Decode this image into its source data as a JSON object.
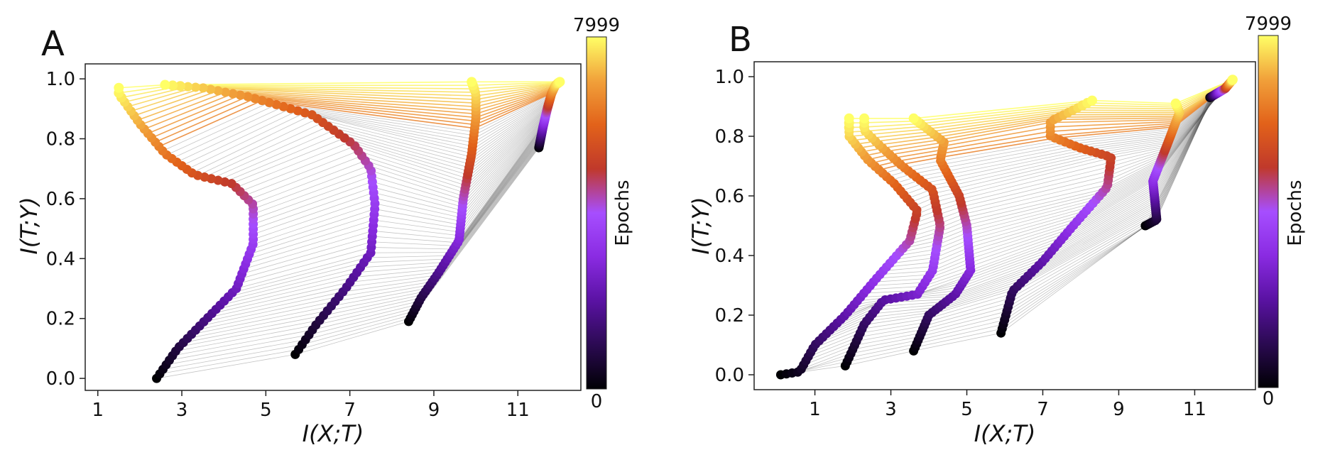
{
  "figure": {
    "colorbar_label": "Epochs",
    "colorbar_min": "0",
    "colorbar_max": "7999",
    "colormap": [
      "#000004",
      "#2b0a52",
      "#5a12a3",
      "#8a2be2",
      "#a64eff",
      "#c0392b",
      "#e2621a",
      "#f1a13a",
      "#ffff66"
    ]
  },
  "chart_data": [
    {
      "type": "scatter",
      "panel_label": "A",
      "title": "",
      "xlabel": "I(X;T)",
      "ylabel": "I(T;Y)",
      "xlim": [
        0.7,
        12.5
      ],
      "ylim": [
        -0.04,
        1.05
      ],
      "xticks": [
        "1",
        "3",
        "5",
        "7",
        "9",
        "11"
      ],
      "yticks": [
        "0.0",
        "0.2",
        "0.4",
        "0.6",
        "0.8",
        "1.0"
      ],
      "colorbar_label": "Epochs",
      "colorbar_range": [
        0,
        7999
      ],
      "series": [
        {
          "points": [
            [
              2.4,
              0.0
            ],
            [
              2.9,
              0.1
            ],
            [
              3.6,
              0.2
            ],
            [
              4.3,
              0.3
            ],
            [
              4.7,
              0.45
            ],
            [
              4.7,
              0.58
            ],
            [
              4.2,
              0.65
            ],
            [
              3.3,
              0.68
            ],
            [
              2.6,
              0.75
            ],
            [
              2.0,
              0.85
            ],
            [
              1.5,
              0.95
            ],
            [
              1.5,
              0.97
            ]
          ]
        },
        {
          "points": [
            [
              5.7,
              0.08
            ],
            [
              6.2,
              0.18
            ],
            [
              6.9,
              0.3
            ],
            [
              7.5,
              0.42
            ],
            [
              7.6,
              0.58
            ],
            [
              7.5,
              0.7
            ],
            [
              7.1,
              0.78
            ],
            [
              6.1,
              0.88
            ],
            [
              4.6,
              0.94
            ],
            [
              3.5,
              0.97
            ],
            [
              2.6,
              0.98
            ]
          ]
        },
        {
          "points": [
            [
              8.4,
              0.19
            ],
            [
              8.7,
              0.27
            ],
            [
              9.1,
              0.35
            ],
            [
              9.6,
              0.46
            ],
            [
              9.7,
              0.6
            ],
            [
              9.9,
              0.75
            ],
            [
              10.0,
              0.87
            ],
            [
              10.0,
              0.95
            ],
            [
              9.9,
              0.99
            ]
          ]
        },
        {
          "points": [
            [
              11.5,
              0.77
            ],
            [
              11.6,
              0.84
            ],
            [
              11.7,
              0.9
            ],
            [
              11.8,
              0.95
            ],
            [
              11.9,
              0.98
            ],
            [
              12.0,
              0.99
            ]
          ]
        }
      ]
    },
    {
      "type": "scatter",
      "panel_label": "B",
      "title": "",
      "xlabel": "I(X;T)",
      "ylabel": "I(T;Y)",
      "xlim": [
        -0.6,
        12.6
      ],
      "ylim": [
        -0.05,
        1.05
      ],
      "xticks": [
        "1",
        "3",
        "5",
        "7",
        "9",
        "11"
      ],
      "yticks": [
        "0.0",
        "0.2",
        "0.4",
        "0.6",
        "0.8",
        "1.0"
      ],
      "colorbar_label": "Epochs",
      "colorbar_range": [
        0,
        7999
      ],
      "series": [
        {
          "points": [
            [
              0.1,
              0.0
            ],
            [
              0.6,
              0.01
            ],
            [
              1.0,
              0.1
            ],
            [
              1.8,
              0.2
            ],
            [
              2.6,
              0.32
            ],
            [
              3.5,
              0.45
            ],
            [
              3.7,
              0.55
            ],
            [
              3.1,
              0.64
            ],
            [
              2.4,
              0.72
            ],
            [
              1.9,
              0.8
            ],
            [
              1.9,
              0.86
            ]
          ]
        },
        {
          "points": [
            [
              1.8,
              0.03
            ],
            [
              2.3,
              0.17
            ],
            [
              2.8,
              0.25
            ],
            [
              3.7,
              0.27
            ],
            [
              4.1,
              0.35
            ],
            [
              4.3,
              0.5
            ],
            [
              4.1,
              0.62
            ],
            [
              3.3,
              0.7
            ],
            [
              2.7,
              0.77
            ],
            [
              2.3,
              0.82
            ],
            [
              2.3,
              0.86
            ]
          ]
        },
        {
          "points": [
            [
              3.6,
              0.08
            ],
            [
              4.0,
              0.2
            ],
            [
              4.7,
              0.27
            ],
            [
              5.1,
              0.35
            ],
            [
              5.0,
              0.5
            ],
            [
              4.8,
              0.6
            ],
            [
              4.3,
              0.72
            ],
            [
              4.4,
              0.78
            ],
            [
              3.6,
              0.86
            ]
          ]
        },
        {
          "points": [
            [
              5.9,
              0.14
            ],
            [
              6.2,
              0.28
            ],
            [
              7.0,
              0.38
            ],
            [
              7.8,
              0.5
            ],
            [
              8.7,
              0.63
            ],
            [
              8.8,
              0.73
            ],
            [
              8.0,
              0.76
            ],
            [
              7.2,
              0.8
            ],
            [
              7.2,
              0.85
            ],
            [
              8.3,
              0.92
            ]
          ]
        },
        {
          "points": [
            [
              9.7,
              0.5
            ],
            [
              10.0,
              0.52
            ],
            [
              9.9,
              0.65
            ],
            [
              10.3,
              0.78
            ],
            [
              10.6,
              0.88
            ],
            [
              10.5,
              0.91
            ]
          ]
        },
        {
          "points": [
            [
              11.4,
              0.93
            ],
            [
              11.8,
              0.96
            ],
            [
              12.0,
              0.99
            ]
          ]
        }
      ]
    }
  ]
}
